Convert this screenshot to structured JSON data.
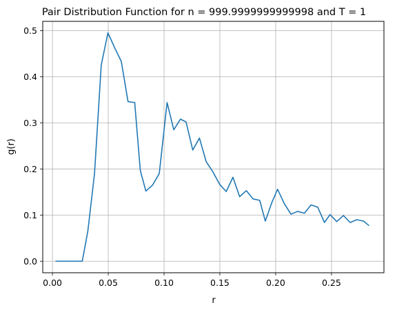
{
  "chart_data": {
    "type": "line",
    "title": "Pair Distribution Function for n = 999.9999999999998 and T = 1",
    "xlabel": "r",
    "ylabel": "g(r)",
    "xlim": [
      -0.0087,
      0.297
    ],
    "ylim": [
      -0.025,
      0.52
    ],
    "xticks": [
      0.0,
      0.05,
      0.1,
      0.15,
      0.2,
      0.25
    ],
    "xtick_labels": [
      "0.00",
      "0.05",
      "0.10",
      "0.15",
      "0.20",
      "0.25"
    ],
    "yticks": [
      0.0,
      0.1,
      0.2,
      0.3,
      0.4,
      0.5
    ],
    "ytick_labels": [
      "0.0",
      "0.1",
      "0.2",
      "0.3",
      "0.4",
      "0.5"
    ],
    "grid": true,
    "color": "#1f77b4",
    "series": [
      {
        "x": [
          0.0027,
          0.0077,
          0.0127,
          0.0177,
          0.0227,
          0.0267,
          0.0317,
          0.0377,
          0.0437,
          0.0497,
          0.0557,
          0.0617,
          0.0677,
          0.0737,
          0.0787,
          0.0837,
          0.0897,
          0.0957,
          0.1027,
          0.1087,
          0.1147,
          0.1197,
          0.1257,
          0.1317,
          0.1377,
          0.1437,
          0.1497,
          0.1557,
          0.1617,
          0.1677,
          0.1737,
          0.1797,
          0.1857,
          0.1907,
          0.1967,
          0.2017,
          0.2077,
          0.2137,
          0.2197,
          0.2257,
          0.2317,
          0.2377,
          0.2437,
          0.2487,
          0.2547,
          0.2607,
          0.2667,
          0.2727,
          0.2787,
          0.2837
        ],
        "y": [
          0.0,
          0.0,
          0.0,
          0.0,
          0.0,
          0.0,
          0.065,
          0.19,
          0.425,
          0.495,
          0.463,
          0.433,
          0.346,
          0.344,
          0.197,
          0.152,
          0.165,
          0.19,
          0.344,
          0.285,
          0.308,
          0.302,
          0.241,
          0.267,
          0.216,
          0.194,
          0.167,
          0.151,
          0.182,
          0.14,
          0.153,
          0.135,
          0.132,
          0.087,
          0.128,
          0.156,
          0.125,
          0.102,
          0.108,
          0.104,
          0.122,
          0.117,
          0.084,
          0.101,
          0.086,
          0.099,
          0.084,
          0.09,
          0.087,
          0.077
        ]
      }
    ]
  }
}
